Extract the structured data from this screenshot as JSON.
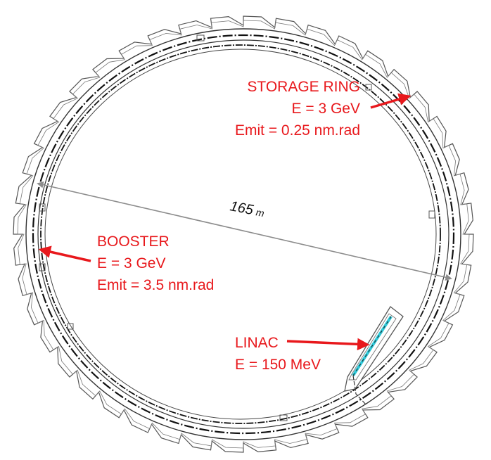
{
  "diameter": {
    "value": "165",
    "unit": "m"
  },
  "storage_ring": {
    "name": "STORAGE RING",
    "energy": "E = 3 GeV",
    "emittance": "Emit = 0.25 nm.rad"
  },
  "booster": {
    "name": "BOOSTER",
    "energy": "E = 3 GeV",
    "emittance": "Emit = 3.5 nm.rad"
  },
  "linac": {
    "name": "LINAC",
    "energy": "E = 150 MeV"
  },
  "colors": {
    "label_red": "#e8181c",
    "arrow_red": "#e8181c",
    "ring_line": "#222222",
    "diameter_line": "#8c8c8c",
    "linac_beam": "#2ec8d8"
  }
}
